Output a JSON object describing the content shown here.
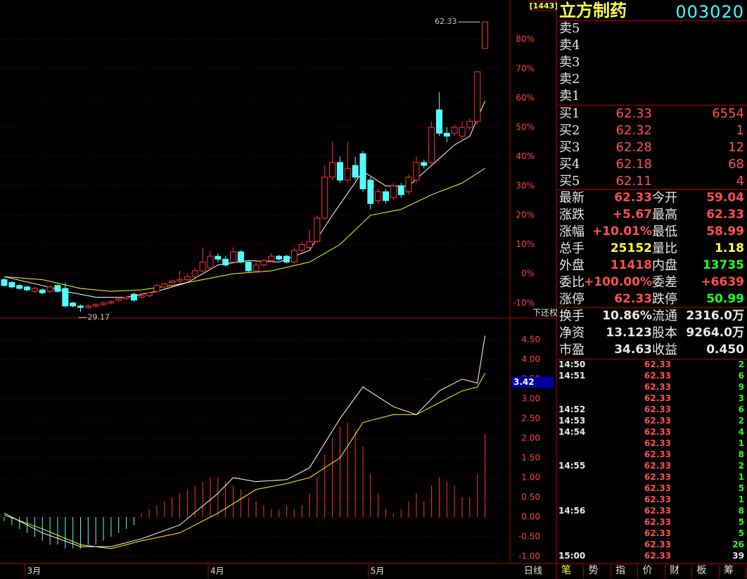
{
  "main_chart": {
    "candles": [
      [
        -2,
        -4,
        -1.5,
        -4.5
      ],
      [
        -3,
        -4.5,
        -2.5,
        -5
      ],
      [
        -4,
        -5,
        -3.5,
        -5.5
      ],
      [
        -4.5,
        -5.5,
        -4,
        -6
      ],
      [
        -6,
        -5,
        -4.5,
        -6.5
      ],
      [
        -5.5,
        -6.5,
        -5,
        -7
      ],
      [
        -6,
        -4.5,
        -4,
        -6.5
      ],
      [
        -4,
        -6,
        -3.5,
        -6.5
      ],
      [
        -5,
        -11,
        -3,
        -11.5
      ],
      [
        -10,
        -11,
        -9.5,
        -11.5
      ],
      [
        -11,
        -11.5,
        -10.5,
        -13
      ],
      [
        -11.5,
        -11,
        -10.5,
        -12
      ],
      [
        -11,
        -10.5,
        -10,
        -11.5
      ],
      [
        -10.5,
        -10,
        -9.5,
        -11
      ],
      [
        -10,
        -9.5,
        -9,
        -10.5
      ],
      [
        -9,
        -8.5,
        -8,
        -9.5
      ],
      [
        -8.5,
        -8,
        -7.5,
        -9
      ],
      [
        -7,
        -9,
        -6.5,
        -9.5
      ],
      [
        -8,
        -7.5,
        -7,
        -8.5
      ],
      [
        -7.5,
        -6.5,
        -6,
        -8
      ],
      [
        -6,
        -4,
        -3.5,
        -6.5
      ],
      [
        -4.5,
        -3.5,
        -3,
        -5
      ],
      [
        -3,
        -2.5,
        -2,
        -3.5
      ],
      [
        -2.5,
        -2,
        1,
        -3
      ],
      [
        -2,
        -1,
        0,
        -2.5
      ],
      [
        -1,
        1,
        2,
        -1.5
      ],
      [
        1,
        4,
        9,
        0.5
      ],
      [
        2,
        6,
        8,
        1.5
      ],
      [
        6,
        5,
        7,
        4
      ],
      [
        5,
        3,
        6,
        2.5
      ],
      [
        4,
        7.5,
        9,
        3.5
      ],
      [
        7.5,
        4,
        8,
        3.5
      ],
      [
        4,
        1,
        4.5,
        0.5
      ],
      [
        1,
        3,
        4,
        0.5
      ],
      [
        3,
        4.5,
        5,
        2.5
      ],
      [
        4.5,
        6,
        7,
        4
      ],
      [
        6,
        5,
        6.5,
        4.5
      ],
      [
        6,
        4,
        6.5,
        3.5
      ],
      [
        4,
        8,
        9,
        3.5
      ],
      [
        8,
        10,
        11,
        7.5
      ],
      [
        9,
        11,
        15,
        8.5
      ],
      [
        11,
        19,
        20,
        10.5
      ],
      [
        19,
        33,
        37,
        18.5
      ],
      [
        33,
        38,
        45,
        32
      ],
      [
        38,
        32,
        40,
        31
      ],
      [
        32,
        36,
        45,
        31
      ],
      [
        37,
        33,
        40,
        32
      ],
      [
        41,
        29,
        42,
        28
      ],
      [
        32,
        24,
        33,
        22
      ],
      [
        25,
        28,
        29,
        24
      ],
      [
        28,
        25,
        29,
        24
      ],
      [
        26,
        30,
        31,
        25
      ],
      [
        30,
        27,
        31,
        26
      ],
      [
        28,
        33,
        34,
        27
      ],
      [
        32,
        38,
        40,
        31
      ],
      [
        38,
        37,
        39,
        36
      ],
      [
        38,
        50,
        52,
        37
      ],
      [
        56,
        48,
        62,
        47
      ],
      [
        48,
        47,
        50,
        45
      ],
      [
        48,
        50,
        51,
        47
      ],
      [
        47,
        50,
        52,
        46
      ],
      [
        50,
        52,
        53,
        49
      ],
      [
        52,
        69,
        69,
        51
      ],
      [
        77,
        86,
        86,
        77
      ]
    ],
    "up_color": "#ff3232",
    "down_color": "#54ffff",
    "ma_white": {
      "color": "#ffffff",
      "x": [
        0,
        5,
        8,
        12,
        16,
        20,
        24,
        28,
        32,
        36,
        40,
        43,
        47,
        50,
        53,
        56,
        59,
        61,
        63
      ],
      "values": [
        -1,
        -4,
        -6,
        -8,
        -8,
        -6,
        -3,
        3,
        4.5,
        4,
        8,
        20,
        35,
        30,
        30,
        37,
        44,
        47,
        59
      ]
    },
    "ma_yellow": {
      "color": "#ffff00",
      "x": [
        0,
        5,
        10,
        14,
        18,
        22,
        26,
        30,
        35,
        40,
        44,
        48,
        52,
        56,
        60,
        63
      ],
      "values": [
        -1,
        -2,
        -5,
        -6,
        -5.5,
        -4,
        -2,
        0,
        1,
        4,
        10,
        20,
        22,
        27,
        31,
        36
      ]
    },
    "ylim": [
      -15.1,
      93.5
    ],
    "yticks": [
      {
        "value": 80,
        "label": "80%"
      },
      {
        "value": 70,
        "label": "70%"
      },
      {
        "value": 60,
        "label": "60%"
      },
      {
        "value": 50,
        "label": "50%"
      },
      {
        "value": 40,
        "label": "40%"
      },
      {
        "value": 30,
        "label": "30%"
      },
      {
        "value": 20,
        "label": "20%"
      },
      {
        "value": 10,
        "label": "10%"
      },
      {
        "value": 0,
        "label": "0%"
      },
      {
        "value": -10,
        "label": "-10%"
      }
    ],
    "high_label": "62.33",
    "low_label": "29.17",
    "adjust_label": "下还权",
    "code_box": "[1443]"
  },
  "indicator_chart": {
    "bars": [
      -0.1,
      -0.2,
      -0.3,
      -0.4,
      -0.5,
      -0.6,
      -0.7,
      -0.7,
      -0.8,
      -0.8,
      -0.8,
      -0.7,
      -0.7,
      -0.6,
      -0.5,
      -0.4,
      -0.3,
      -0.2,
      0.1,
      0.2,
      0.3,
      0.4,
      0.5,
      0.6,
      0.7,
      0.8,
      0.9,
      1.0,
      1.0,
      0.9,
      0.8,
      0.7,
      0.5,
      0.4,
      0.3,
      0.2,
      0.2,
      0.3,
      0.2,
      0.3,
      0.6,
      1.0,
      1.6,
      2.0,
      2.3,
      2.4,
      2.2,
      1.8,
      1.1,
      0.6,
      0.2,
      0.1,
      0.2,
      0.4,
      0.6,
      0.4,
      0.8,
      1.0,
      0.9,
      0.8,
      0.5,
      0.5,
      1.1,
      2.1
    ],
    "up_color": "#ff3232",
    "down_color": "#54ffff",
    "diff": {
      "color": "#ffffff",
      "x": [
        0,
        5,
        10,
        14,
        18,
        23,
        28,
        30,
        33,
        37,
        40,
        44,
        47,
        51,
        54,
        57,
        60,
        62,
        63
      ],
      "values": [
        0.1,
        -0.4,
        -0.75,
        -0.75,
        -0.55,
        -0.2,
        0.6,
        1.0,
        0.9,
        0.95,
        1.25,
        2.5,
        3.3,
        2.8,
        2.6,
        3.2,
        3.5,
        3.4,
        4.6
      ]
    },
    "dea": {
      "color": "#ffff00",
      "x": [
        0,
        5,
        10,
        14,
        18,
        23,
        28,
        33,
        37,
        40,
        44,
        47,
        51,
        54,
        57,
        60,
        62,
        63
      ],
      "values": [
        0.05,
        -0.3,
        -0.7,
        -0.8,
        -0.6,
        -0.4,
        0.1,
        0.7,
        0.85,
        1.0,
        1.5,
        2.4,
        2.6,
        2.6,
        2.9,
        3.2,
        3.3,
        3.65
      ]
    },
    "ylim": [
      -1.16,
      5.05
    ],
    "yticks": [
      {
        "value": 4.5,
        "label": "4.50"
      },
      {
        "value": 4,
        "label": "4.00"
      },
      {
        "value": 3.5,
        "label": "3.50"
      },
      {
        "value": 3,
        "label": "3.00"
      },
      {
        "value": 2.5,
        "label": "2.50"
      },
      {
        "value": 2,
        "label": "2.00"
      },
      {
        "value": 1.5,
        "label": "1.50"
      },
      {
        "value": 1,
        "label": "1.00"
      },
      {
        "value": 0.5,
        "label": "0.50"
      },
      {
        "value": 0,
        "label": "0.00"
      },
      {
        "value": -0.5,
        "label": "-0.50"
      },
      {
        "value": -1,
        "label": "-1.00"
      }
    ],
    "current": 3.42
  },
  "x_axis": {
    "months": [
      "3月",
      "4月",
      "5月"
    ],
    "month_start": [
      3,
      27,
      48
    ],
    "period": "日线"
  },
  "quote": {
    "name": "立方制药",
    "code": "003020",
    "sell": [
      "卖5",
      "卖4",
      "卖3",
      "卖2",
      "卖1"
    ],
    "buy": [
      {
        "label": "买1",
        "price": "62.33",
        "volume": "6554"
      },
      {
        "label": "买2",
        "price": "62.32",
        "volume": "1"
      },
      {
        "label": "买3",
        "price": "62.28",
        "volume": "12"
      },
      {
        "label": "买4",
        "price": "62.18",
        "volume": "68"
      },
      {
        "label": "买5",
        "price": "62.11",
        "volume": "4"
      }
    ],
    "stats": [
      {
        "l1": "最新",
        "v1": "62.33",
        "c1": "#ff5050",
        "l2": "今开",
        "v2": "59.04",
        "c2": "#ff5050"
      },
      {
        "l1": "涨跌",
        "v1": "+5.67",
        "c1": "#ff5050",
        "l2": "最高",
        "v2": "62.33",
        "c2": "#ff5050"
      },
      {
        "l1": "涨幅",
        "v1": "+10.01%",
        "c1": "#ff5050",
        "l2": "最低",
        "v2": "58.99",
        "c2": "#ff5050"
      },
      {
        "l1": "总手",
        "v1": "25152",
        "c1": "#ffff40",
        "l2": "量比",
        "v2": "1.18",
        "c2": "#ffff40"
      },
      {
        "l1": "外盘",
        "v1": "11418",
        "c1": "#ff5050",
        "l2": "内盘",
        "v2": "13735",
        "c2": "#20ff20"
      },
      {
        "l1": "委比",
        "v1": "+100.00%",
        "c1": "#ff5050",
        "l2": "委差",
        "v2": "+6639",
        "c2": "#ff5050"
      },
      {
        "l1": "涨停",
        "v1": "62.33",
        "c1": "#ff5050",
        "l2": "跌停",
        "v2": "50.99",
        "c2": "#20ff20"
      },
      {
        "l1": "换手",
        "v1": "10.86%",
        "c1": "#e8e8e8",
        "l2": "流通",
        "v2": "2316.0万",
        "c2": "#e8e8e8"
      },
      {
        "l1": "净资",
        "v1": "13.123",
        "c1": "#e8e8e8",
        "l2": "股本",
        "v2": "9264.0万",
        "c2": "#e8e8e8"
      },
      {
        "l1": "市盈",
        "v1": "34.63",
        "c1": "#e8e8e8",
        "l2": "收益",
        "v2": "0.450",
        "c2": "#e8e8e8"
      }
    ],
    "ticks": [
      {
        "time": "14:50",
        "price": "62.33",
        "volume": "2"
      },
      {
        "time": "14:51",
        "price": "62.33",
        "volume": "6"
      },
      {
        "time": null,
        "price": "62.33",
        "volume": "9"
      },
      {
        "time": null,
        "price": "62.33",
        "volume": "3"
      },
      {
        "time": "14:52",
        "price": "62.33",
        "volume": "6"
      },
      {
        "time": "14:53",
        "price": "62.33",
        "volume": "2"
      },
      {
        "time": "14:54",
        "price": "62.33",
        "volume": "4"
      },
      {
        "time": null,
        "price": "62.33",
        "volume": "1"
      },
      {
        "time": null,
        "price": "62.33",
        "volume": "8"
      },
      {
        "time": "14:55",
        "price": "62.33",
        "volume": "2"
      },
      {
        "time": null,
        "price": "62.33",
        "volume": "1"
      },
      {
        "time": null,
        "price": "62.33",
        "volume": "5"
      },
      {
        "time": null,
        "price": "62.33",
        "volume": "1"
      },
      {
        "time": "14:56",
        "price": "62.33",
        "volume": "8"
      },
      {
        "time": null,
        "price": "62.33",
        "volume": "5"
      },
      {
        "time": null,
        "price": "62.33",
        "volume": "5"
      },
      {
        "time": null,
        "price": "62.33",
        "volume": "26"
      },
      {
        "time": "15:00",
        "price": "62.33",
        "volume": "39",
        "volume_color": "#e8e8e8"
      }
    ],
    "tabs": [
      "笔",
      "势",
      "指",
      "价",
      "财",
      "板",
      "筹"
    ]
  }
}
